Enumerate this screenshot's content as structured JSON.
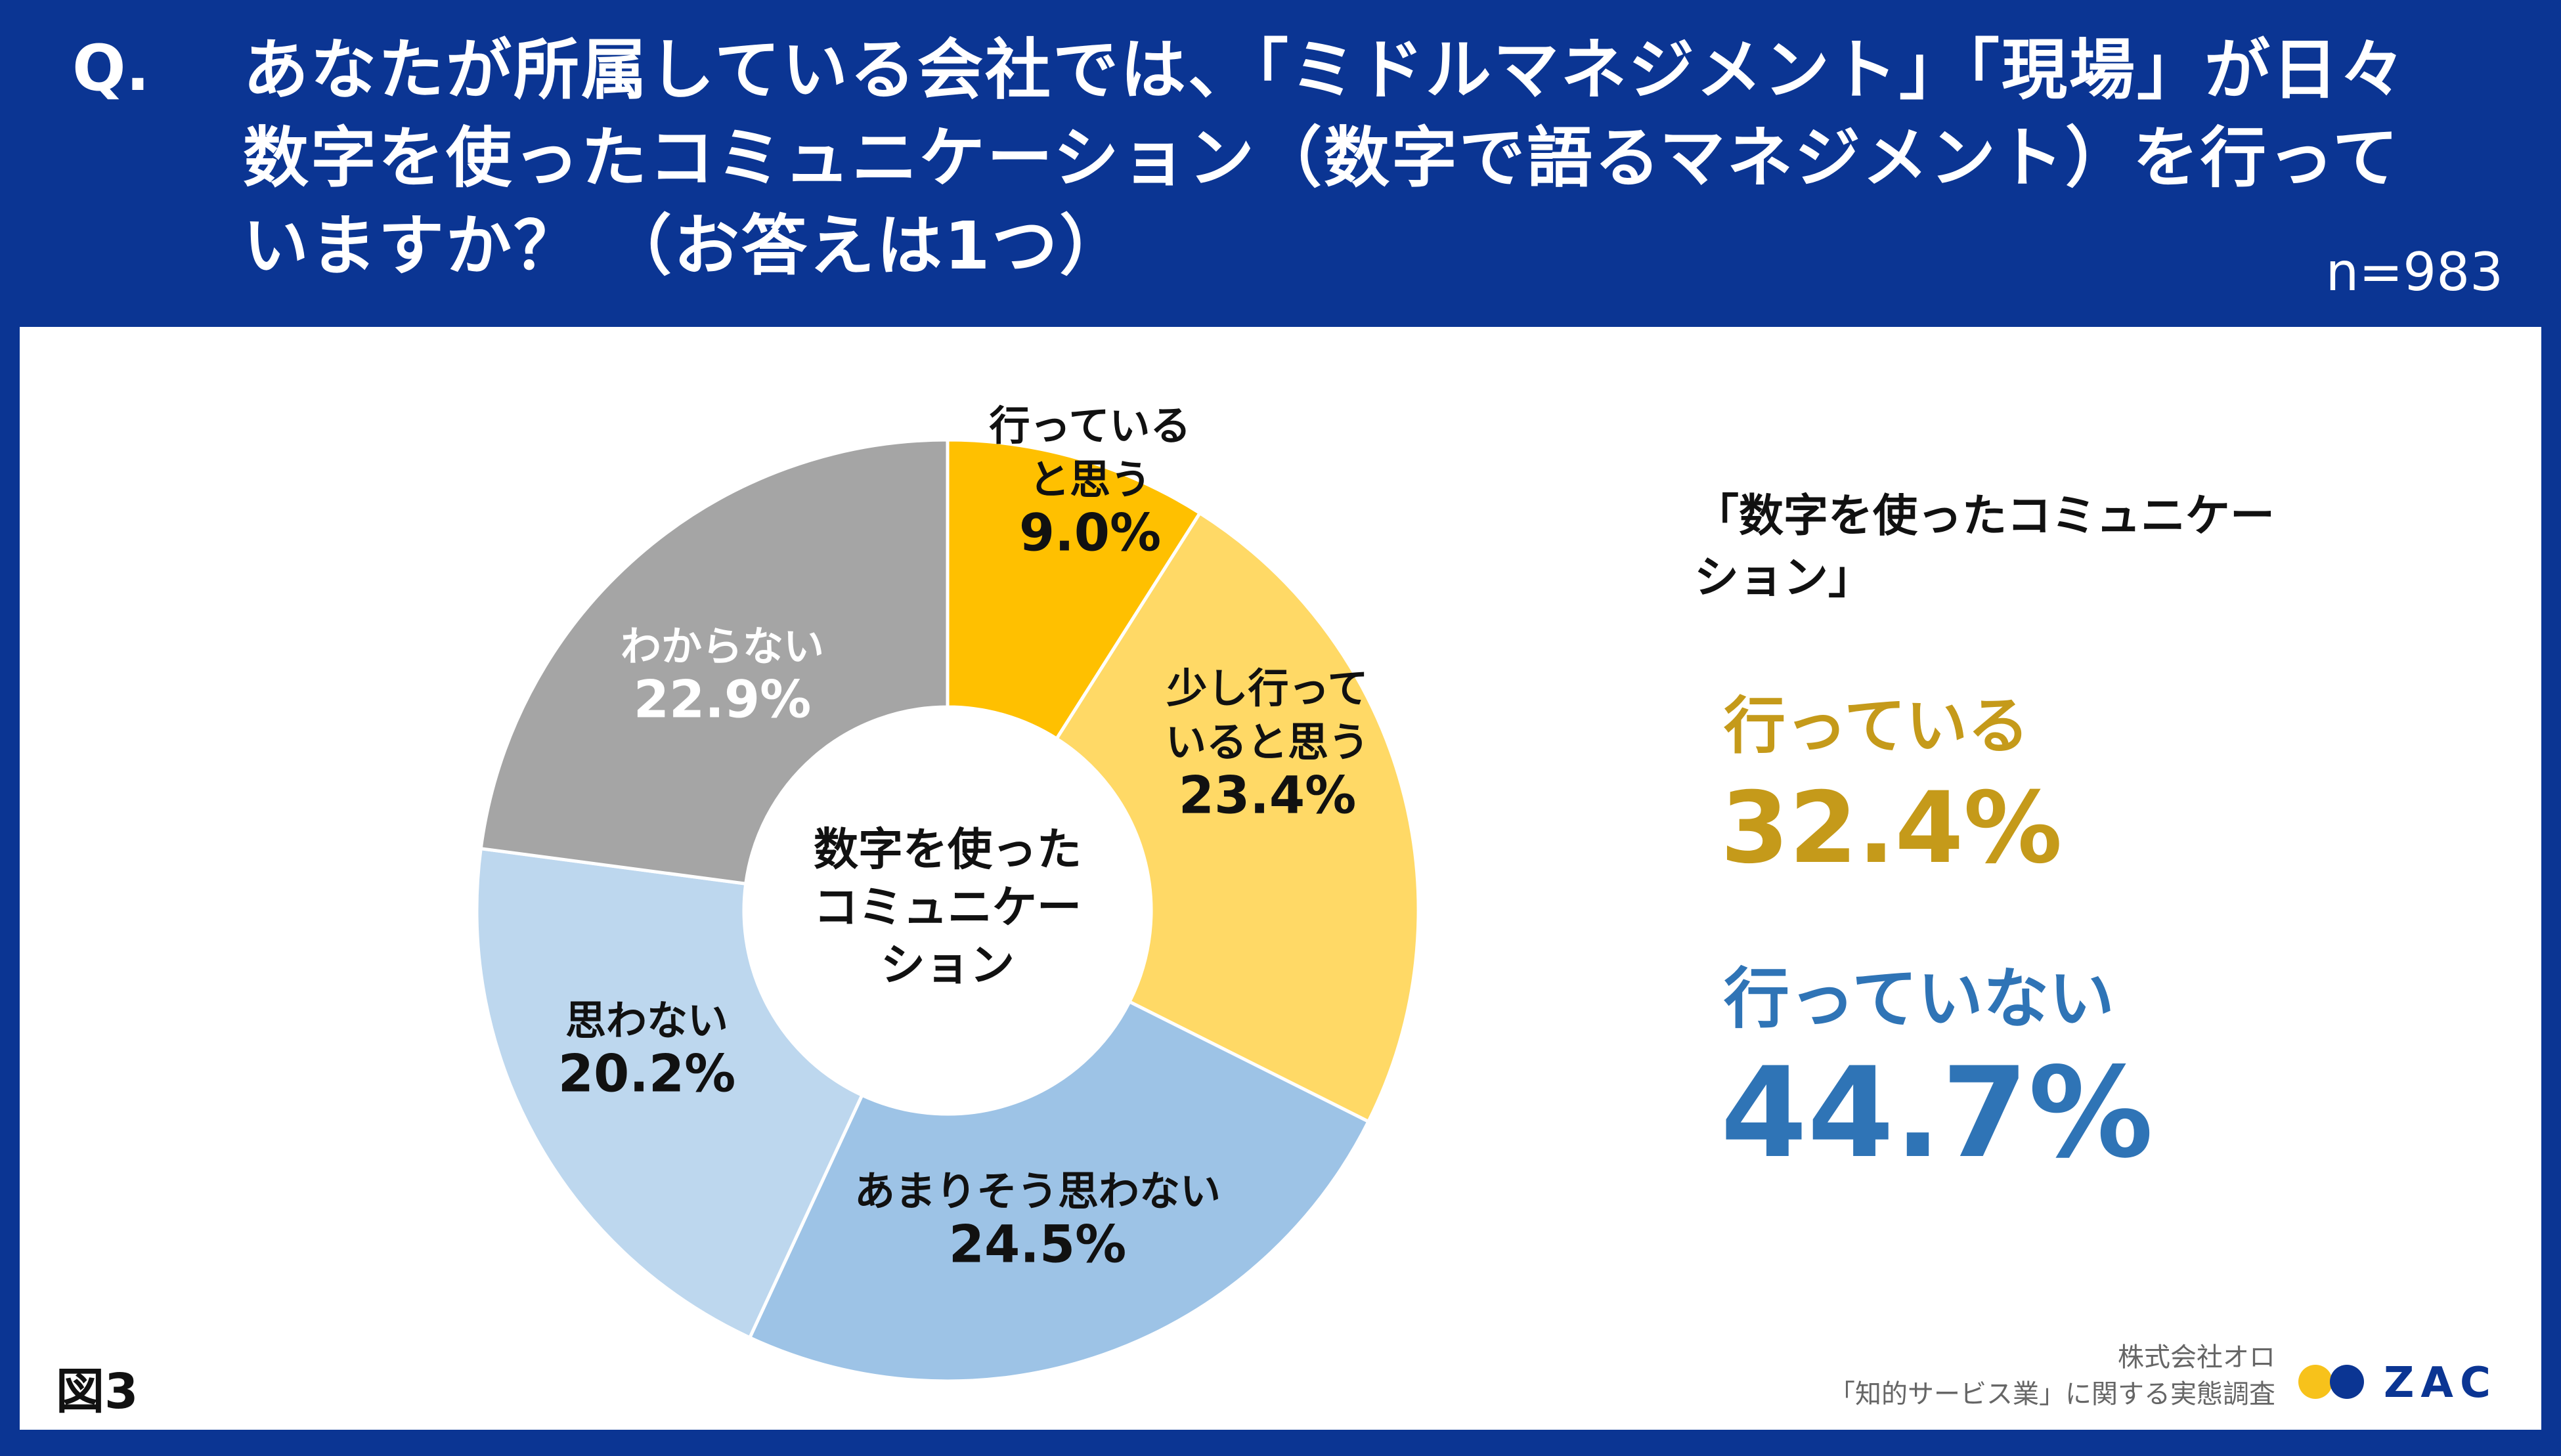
{
  "question": {
    "mark": "Q.",
    "text": "あなたが所属している会社では、「ミドルマネジメント」「現場」が日々数字を使ったコミュニケーション（数字で語るマネジメント）を行っていますか？ （お答えは1つ）",
    "n": "n=983"
  },
  "chart_data": {
    "type": "pie",
    "donut": true,
    "center_label_lines": [
      "数字を使った",
      "コミュニケー",
      "ション"
    ],
    "slices": [
      {
        "label_lines": [
          "行っている",
          "と思う"
        ],
        "value": 9.0,
        "display": "9.0%",
        "color": "#ffc000",
        "text_color": "#111111"
      },
      {
        "label_lines": [
          "少し行って",
          "いると思う"
        ],
        "value": 23.4,
        "display": "23.4%",
        "color": "#ffd966",
        "text_color": "#111111"
      },
      {
        "label_lines": [
          "あまりそう思わない"
        ],
        "value": 24.5,
        "display": "24.5%",
        "color": "#9dc3e6",
        "text_color": "#111111"
      },
      {
        "label_lines": [
          "思わない"
        ],
        "value": 20.2,
        "display": "20.2%",
        "color": "#bdd7ee",
        "text_color": "#111111"
      },
      {
        "label_lines": [
          "わからない"
        ],
        "value": 22.9,
        "display": "22.9%",
        "color": "#a5a5a5",
        "text_color": "#ffffff"
      }
    ]
  },
  "summary": {
    "title": "「数字を使ったコミュニケーション」",
    "yes_label": "行っている",
    "yes_value": "32.4%",
    "no_label": "行っていない",
    "no_value": "44.7%"
  },
  "footer": {
    "figure": "図3",
    "source_line1": "株式会社オロ",
    "source_line2": "「知的サービス業」に関する実態調査",
    "logo_text": "ZAC"
  },
  "colors": {
    "brand_blue": "#0b3593",
    "gold": "#c59a1a",
    "blue": "#2f74b6"
  }
}
